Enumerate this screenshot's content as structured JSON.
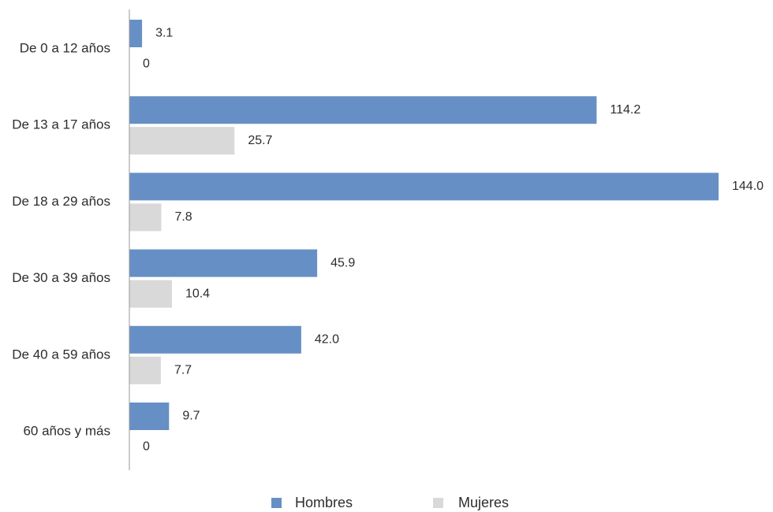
{
  "chart_data": {
    "type": "bar",
    "orientation": "horizontal",
    "categories": [
      "De 0 a 12 años",
      "De 13 a 17 años",
      "De 18 a 29 años",
      "De 30 a 39 años",
      "De 40 a 59 años",
      "60 años y más"
    ],
    "series": [
      {
        "name": "Hombres",
        "color": "#6690c5",
        "values": [
          3.1,
          114.2,
          144.0,
          45.9,
          42.0,
          9.7
        ],
        "labels": [
          "3.1",
          "114.2",
          "144.0",
          "45.9",
          "42.0",
          "9.7"
        ]
      },
      {
        "name": "Mujeres",
        "color": "#d9d9d9",
        "values": [
          0,
          25.7,
          7.8,
          10.4,
          7.7,
          0
        ],
        "labels": [
          "0",
          "25.7",
          "7.8",
          "10.4",
          "7.7",
          "0"
        ]
      }
    ],
    "title": "",
    "xlabel": "",
    "ylabel": "",
    "xlim": [
      0,
      144.0
    ],
    "grid": false,
    "legend_position": "bottom"
  }
}
